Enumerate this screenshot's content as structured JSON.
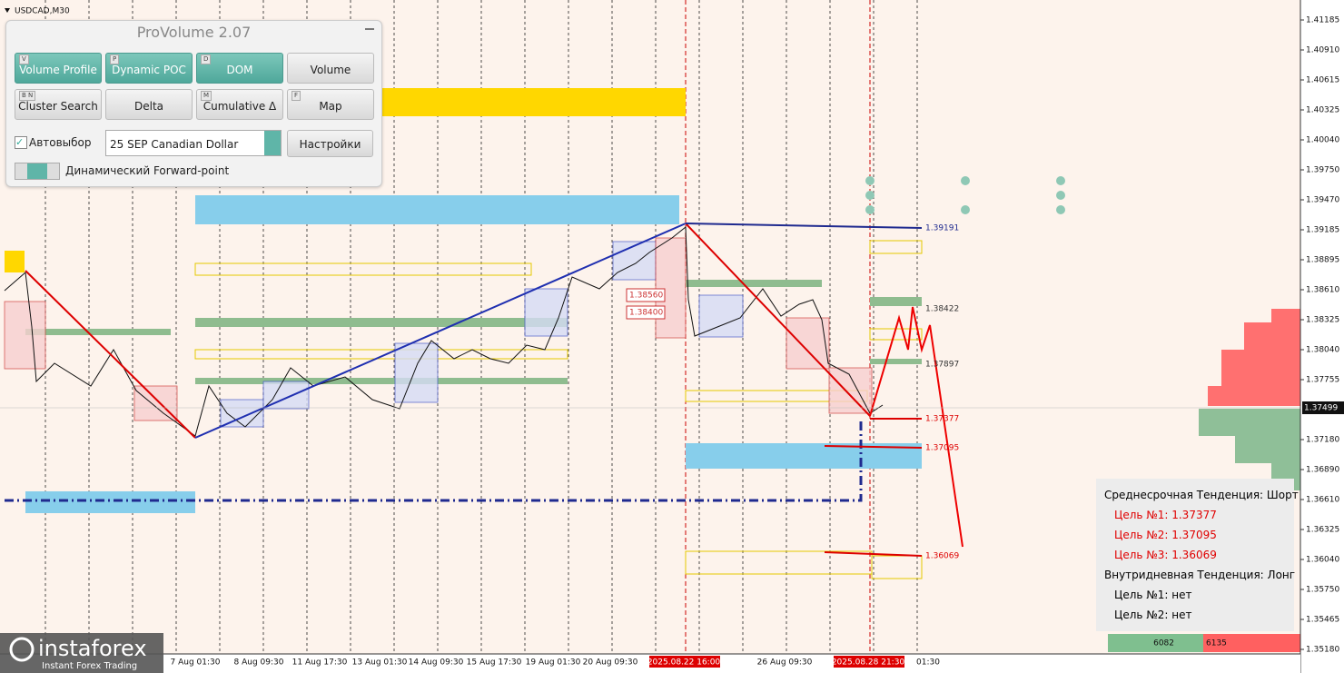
{
  "symbol": "USDCAD,M30",
  "panel": {
    "title": "ProVolume 2.07",
    "buttons": [
      {
        "label": "Volume Profile",
        "key": "V"
      },
      {
        "label": "Dynamic POC",
        "key": "P"
      },
      {
        "label": "DOM",
        "key": "D"
      },
      {
        "label": "Volume"
      },
      {
        "label": "Cluster Search",
        "key": "B N"
      },
      {
        "label": "Delta"
      },
      {
        "label": "Cumulative Δ",
        "key": "M"
      },
      {
        "label": "Map",
        "key": "F"
      }
    ],
    "auto_select": "Автовыбор",
    "instrument": "25 SEP Canadian Dollar",
    "settings": "Настройки",
    "forward_point": "Динамический Forward-point"
  },
  "price_axis": {
    "labels": [
      "1.41185",
      "1.40910",
      "1.40615",
      "1.40325",
      "1.40040",
      "1.39750",
      "1.39470",
      "1.39185",
      "1.38895",
      "1.38610",
      "1.38325",
      "1.38040",
      "1.37755",
      "1.37180",
      "1.36890",
      "1.36610",
      "1.36325",
      "1.36040",
      "1.35750",
      "1.35465",
      "1.35180"
    ],
    "current": "1.37499"
  },
  "time_axis": [
    "7 Aug 01:30",
    "8 Aug 09:30",
    "11 Aug 17:30",
    "13 Aug 01:30",
    "14 Aug 09:30",
    "15 Aug 17:30",
    "19 Aug 01:30",
    "20 Aug 09:30",
    "2025.08.22 16:00",
    "26 Aug 09:30",
    "2025.08.28 21:30",
    "01:30"
  ],
  "levels": [
    "1.39191",
    "1.38422",
    "1.37897",
    "1.37377",
    "1.37095",
    "1.36069",
    "1.38560",
    "1.38400"
  ],
  "trend": {
    "mid": "Среднесрочная Тенденция: Шорт",
    "mid_targets": [
      "Цель №1: 1.37377",
      "Цель №2: 1.37095",
      "Цель №3: 1.36069"
    ],
    "intraday": "Внутридневная Тенденция: Лонг",
    "intraday_targets": [
      "Цель №1: нет",
      "Цель №2: нет"
    ]
  },
  "volumes": [
    "6082",
    "6135"
  ],
  "logo": {
    "name": "instaforex",
    "tagline": "Instant Forex Trading"
  }
}
